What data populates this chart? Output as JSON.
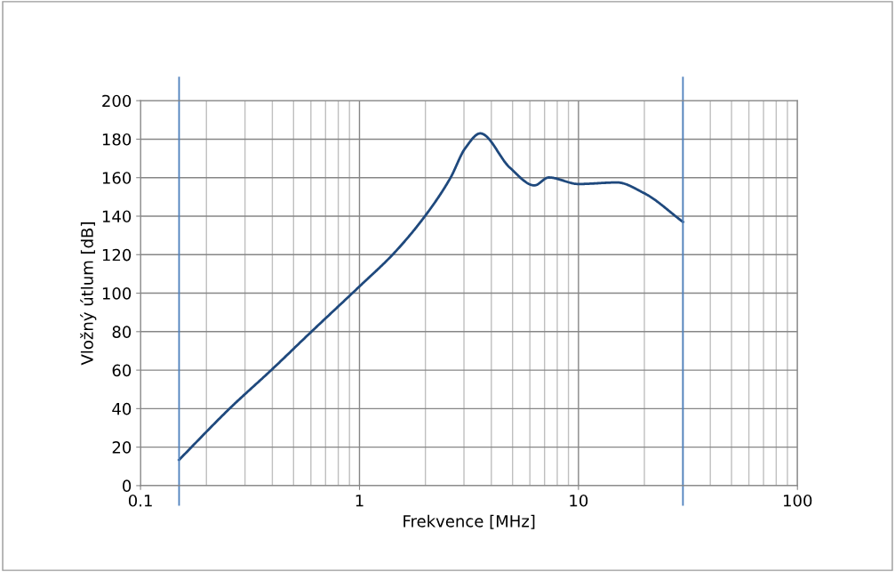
{
  "chart_data": {
    "type": "line",
    "xlabel": "Frekvence [MHz]",
    "ylabel": "Vložný útlum [dB]",
    "log": "x",
    "xlim": [
      0.1,
      100
    ],
    "xticks": [
      {
        "value": 0.1,
        "label": "0.1"
      },
      {
        "value": 1,
        "label": "1"
      },
      {
        "value": 10,
        "label": "10"
      },
      {
        "value": 100,
        "label": "100"
      }
    ],
    "ylim": [
      0,
      200
    ],
    "yticks": [
      0,
      20,
      40,
      60,
      80,
      100,
      120,
      140,
      160,
      180,
      200
    ],
    "grid": true,
    "legend": false,
    "marker": "none",
    "line_style": "solid",
    "series": [
      {
        "color": "#1f497d",
        "x": [
          0.15,
          0.256,
          0.397,
          0.597,
          1,
          1.43,
          1.99,
          2.6,
          3.04,
          3.56,
          4.86,
          6.29,
          7.32,
          10,
          15,
          19.9,
          30
        ],
        "values": [
          13.4,
          40.2,
          60.2,
          79.5,
          103.5,
          120.5,
          140,
          159.8,
          175.3,
          183,
          165.2,
          156,
          160.1,
          156.7,
          157.5,
          152,
          137
        ]
      }
    ],
    "ref_lines": [
      {
        "axis": "x",
        "value": 0.15,
        "color": "#4f81bd"
      },
      {
        "axis": "x",
        "value": 30,
        "color": "#4f81bd"
      }
    ]
  }
}
